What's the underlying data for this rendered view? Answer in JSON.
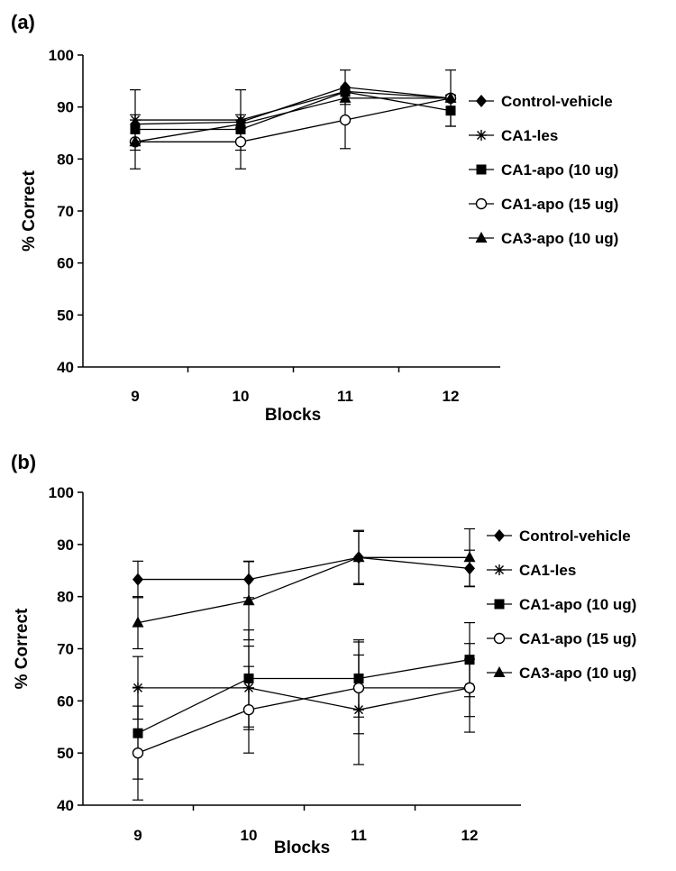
{
  "chart_data": [
    {
      "type": "line",
      "panel_label": "(a)",
      "xlabel": "Blocks",
      "ylabel": "% Correct",
      "ylim": [
        40,
        100
      ],
      "yticks": [
        40,
        50,
        60,
        70,
        80,
        90,
        100
      ],
      "x": [
        9,
        10,
        11,
        12
      ],
      "legend_position": "right",
      "series": [
        {
          "name": "Control-vehicle",
          "marker": "diamond",
          "values": [
            86.7,
            87.1,
            93.8,
            91.7
          ],
          "errors": [
            0,
            0,
            3.3,
            0
          ]
        },
        {
          "name": "CA1-les",
          "marker": "star",
          "values": [
            87.5,
            87.5,
            93.0,
            91.7
          ],
          "errors": [
            5.8,
            5.8,
            0,
            5.4
          ]
        },
        {
          "name": "CA1-apo (10 ug)",
          "marker": "square",
          "values": [
            85.7,
            85.7,
            92.9,
            89.3
          ],
          "errors": [
            0,
            0,
            0,
            3.0
          ]
        },
        {
          "name": "CA1-apo (15 ug)",
          "marker": "circle",
          "values": [
            83.3,
            83.3,
            87.5,
            91.7
          ],
          "errors": [
            5.2,
            5.2,
            5.5,
            0
          ]
        },
        {
          "name": "CA3-apo (10 ug)",
          "marker": "triangle",
          "values": [
            83.3,
            86.7,
            91.7,
            91.7
          ],
          "errors": [
            0,
            0,
            0,
            0
          ]
        }
      ]
    },
    {
      "type": "line",
      "panel_label": "(b)",
      "xlabel": "Blocks",
      "ylabel": "% Correct",
      "ylim": [
        40,
        100
      ],
      "yticks": [
        40,
        50,
        60,
        70,
        80,
        90,
        100
      ],
      "x": [
        9,
        10,
        11,
        12
      ],
      "legend_position": "right",
      "series": [
        {
          "name": "Control-vehicle",
          "marker": "diamond",
          "values": [
            83.3,
            83.3,
            87.5,
            85.4
          ],
          "errors": [
            3.5,
            3.5,
            5.2,
            3.5
          ]
        },
        {
          "name": "CA1-les",
          "marker": "star",
          "values": [
            62.5,
            62.5,
            58.3,
            62.5
          ],
          "errors": [
            6.0,
            8.0,
            10.5,
            8.5
          ]
        },
        {
          "name": "CA1-apo (10 ug)",
          "marker": "square",
          "values": [
            53.8,
            64.3,
            64.3,
            67.9
          ],
          "errors": [
            8.8,
            9.3,
            7.4,
            7.1
          ]
        },
        {
          "name": "CA1-apo (15 ug)",
          "marker": "circle",
          "values": [
            50.0,
            58.3,
            62.5,
            62.5
          ],
          "errors": [
            9.0,
            8.3,
            8.8,
            5.5
          ]
        },
        {
          "name": "CA3-apo (10 ug)",
          "marker": "triangle",
          "values": [
            75.0,
            79.2,
            87.5,
            87.5
          ],
          "errors": [
            5.0,
            7.5,
            5.0,
            5.5
          ]
        }
      ]
    }
  ]
}
